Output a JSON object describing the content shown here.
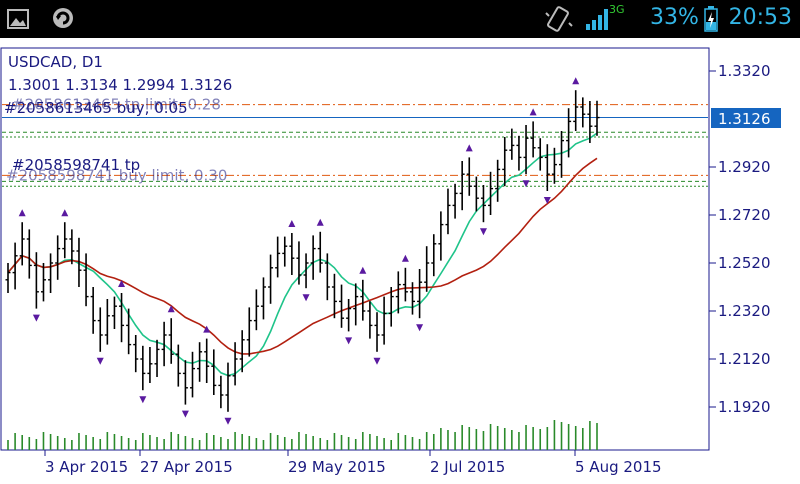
{
  "status_bar": {
    "time": "20:53",
    "battery_percent": "33%",
    "network_type": "3G",
    "icons": [
      "image-icon",
      "sync-icon",
      "vibrate-icon",
      "signal-icon",
      "battery-icon"
    ]
  },
  "chart_info": {
    "symbol": "USDCAD, D1",
    "ohlc": "1.3001 1.3134 1.2994 1.3126",
    "current_price": "1.3126"
  },
  "orders": [
    {
      "label": "#2058613465 buy, 0.05",
      "price": 1.3065
    },
    {
      "label": "#2058598741 tp",
      "price": 1.2855
    }
  ],
  "orders_obscured": [
    {
      "label": "#2058613465 tp limit, 0.28",
      "price": 1.318
    },
    {
      "label": "#2058598741 buy limit, 0.30",
      "price": 1.2885
    }
  ],
  "chart_data": {
    "type": "bar",
    "symbol": "USDCAD",
    "timeframe": "D1",
    "price_axis": {
      "ticks": [
        "1.3320",
        "1.2920",
        "1.2720",
        "1.2520",
        "1.2320",
        "1.2120",
        "1.1920"
      ]
    },
    "time_axis": {
      "ticks": [
        "3 Apr 2015",
        "27 Apr 2015",
        "29 May 2015",
        "2 Jul 2015",
        "5 Aug 2015"
      ]
    },
    "series": [
      {
        "name": "",
        "color": "#1fc48a",
        "type": "moving-average"
      },
      {
        "name": "",
        "color": "#b22010",
        "type": "moving-average"
      }
    ],
    "colors": {
      "bars": "#000000",
      "fractals": "#5a1aa0",
      "volume": "#2a8a2a",
      "axis": "#1a1a8c",
      "text": "#1a1a80"
    }
  }
}
